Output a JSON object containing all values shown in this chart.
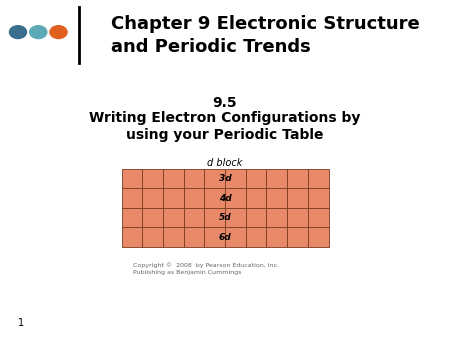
{
  "title_main": "Chapter 9 Electronic Structure\nand Periodic Trends",
  "subtitle_number": "9.5",
  "subtitle_text": "Writing Electron Configurations by\nusing your Periodic Table",
  "d_block_label": "d block",
  "row_labels": [
    "3d",
    "4d",
    "5d",
    "6d"
  ],
  "num_cols": 10,
  "num_rows": 4,
  "cell_color": "#E8896A",
  "cell_edge_color": "#7A3B1E",
  "background_color": "#FFFFFF",
  "dot_colors": [
    "#3B6E8C",
    "#5BAAB5",
    "#E06020"
  ],
  "copyright_text": "Copyright ©  2008  by Pearson Education, Inc.\nPublishing as Benjamin Cummings",
  "page_number": "1",
  "title_fontsize": 13,
  "subtitle_number_fontsize": 10,
  "subtitle_fontsize": 10,
  "d_block_label_fontsize": 7,
  "cell_label_fontsize": 6.5,
  "copyright_fontsize": 4.5,
  "page_fontsize": 7
}
